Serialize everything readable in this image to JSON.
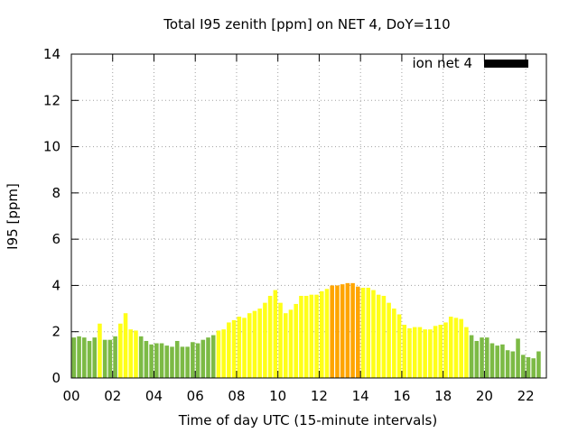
{
  "chart_data": {
    "type": "bar",
    "title": "Total I95 zenith [ppm] on NET 4, DoY=110",
    "xlabel": "Time of day UTC (15-minute intervals)",
    "ylabel": "I95 [ppm]",
    "ylim": [
      0,
      14
    ],
    "xlim": [
      0,
      23
    ],
    "xticks": [
      "00",
      "02",
      "04",
      "06",
      "08",
      "10",
      "12",
      "14",
      "16",
      "18",
      "20",
      "22"
    ],
    "yticks": [
      "0",
      "2",
      "4",
      "6",
      "8",
      "10",
      "12",
      "14"
    ],
    "grid": true,
    "legend_position": "top-right",
    "series": [
      {
        "name": "ion net 4",
        "legend_color": "#000000",
        "interval_hours": 0.25,
        "values": [
          1.75,
          1.8,
          1.75,
          1.6,
          1.75,
          2.35,
          1.65,
          1.65,
          1.8,
          2.35,
          2.8,
          2.1,
          2.05,
          1.8,
          1.6,
          1.45,
          1.5,
          1.5,
          1.4,
          1.35,
          1.6,
          1.35,
          1.35,
          1.55,
          1.5,
          1.65,
          1.75,
          1.85,
          2.05,
          2.1,
          2.4,
          2.5,
          2.65,
          2.6,
          2.8,
          2.9,
          3.0,
          3.25,
          3.55,
          3.8,
          3.25,
          2.8,
          2.95,
          3.2,
          3.55,
          3.55,
          3.6,
          3.6,
          3.75,
          3.85,
          4.0,
          4.0,
          4.05,
          4.1,
          4.1,
          3.95,
          3.9,
          3.9,
          3.8,
          3.6,
          3.55,
          3.25,
          3.0,
          2.75,
          2.3,
          2.15,
          2.2,
          2.2,
          2.1,
          2.1,
          2.25,
          2.3,
          2.4,
          2.65,
          2.6,
          2.55,
          2.2,
          1.85,
          1.6,
          1.75,
          1.75,
          1.5,
          1.4,
          1.45,
          1.2,
          1.15,
          1.7,
          1.0,
          0.9,
          0.85,
          1.15
        ]
      }
    ],
    "color_scale": [
      {
        "max": 2.0,
        "color": "#7cba45"
      },
      {
        "max": 3.95,
        "color": "#ffff18"
      },
      {
        "max": 6.0,
        "color": "#ffa500"
      }
    ]
  }
}
